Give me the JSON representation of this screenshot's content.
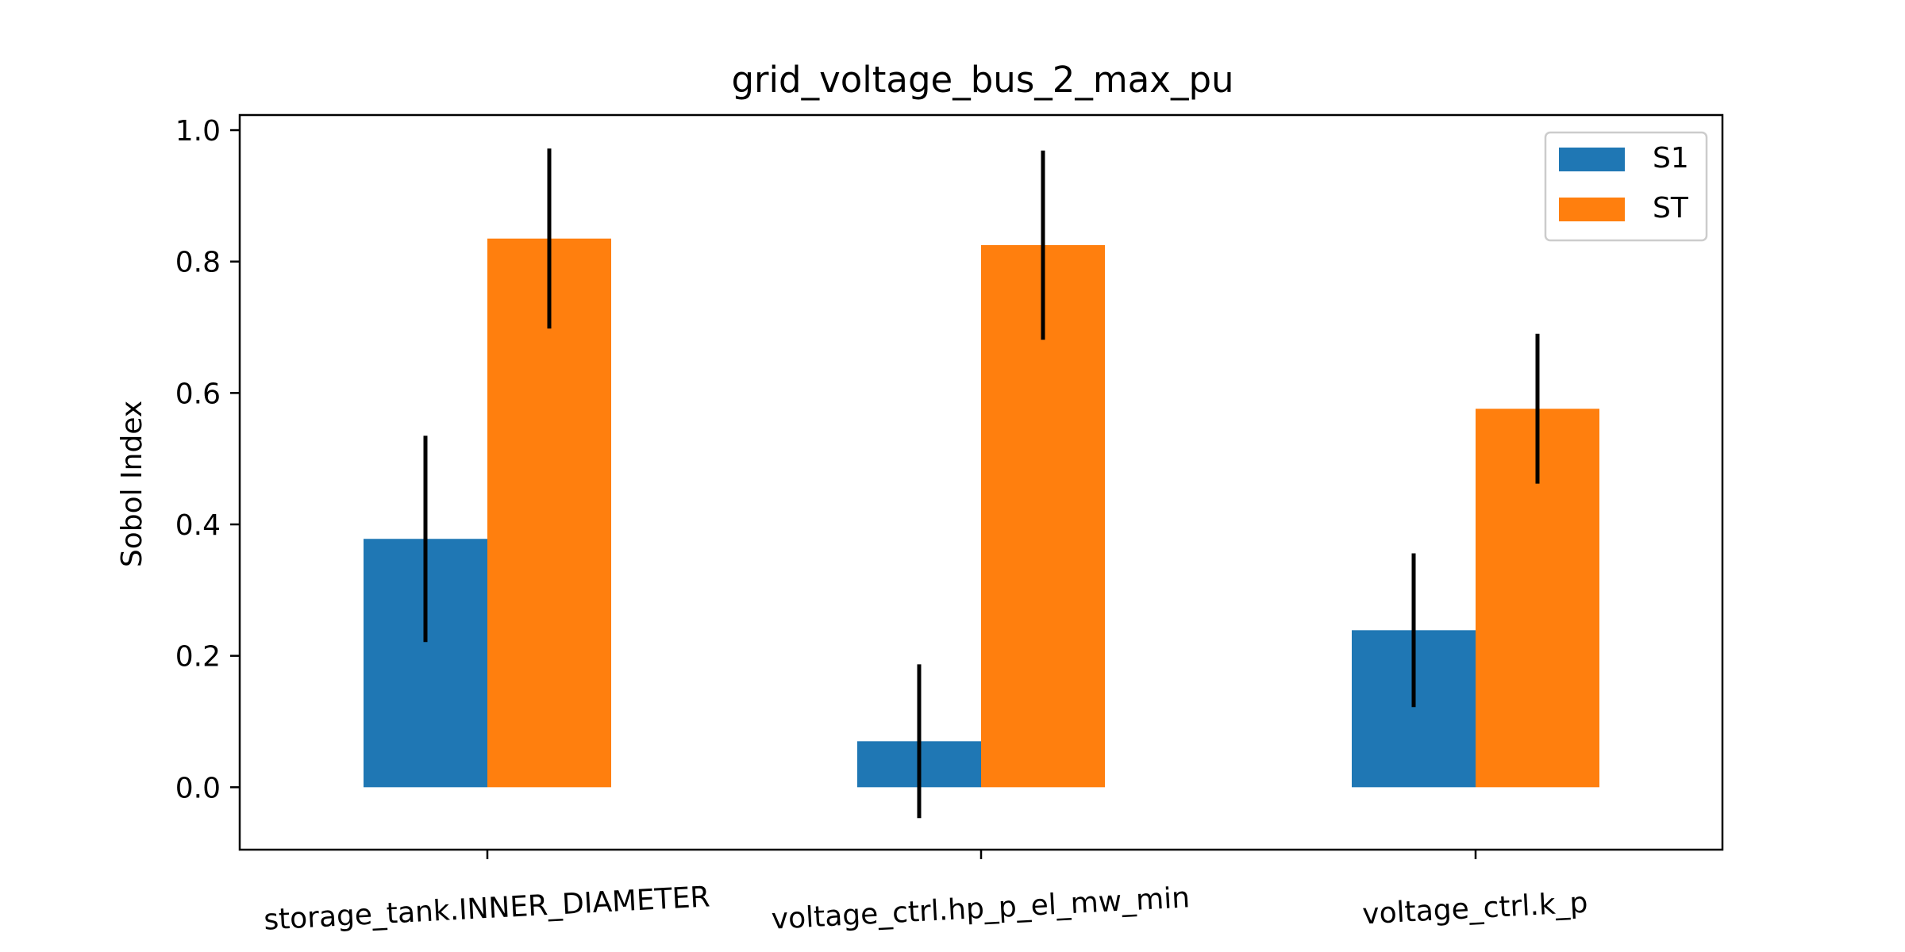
{
  "chart_data": {
    "type": "bar",
    "title": "grid_voltage_bus_2_max_pu",
    "xlabel": "",
    "ylabel": "Sobol Index",
    "categories": [
      "storage_tank.INNER_DIAMETER",
      "voltage_ctrl.hp_p_el_mw_min",
      "voltage_ctrl.k_p"
    ],
    "series": [
      {
        "name": "S1",
        "color": "#1f77b4",
        "values": [
          0.378,
          0.07,
          0.239
        ],
        "errors": [
          0.157,
          0.117,
          0.117
        ]
      },
      {
        "name": "ST",
        "color": "#ff7f0e",
        "values": [
          0.835,
          0.825,
          0.576
        ],
        "errors": [
          0.137,
          0.144,
          0.114
        ]
      }
    ],
    "ylim": [
      -0.095,
      1.023
    ],
    "yticks": [
      "0.0",
      "0.2",
      "0.4",
      "0.6",
      "0.8",
      "1.0"
    ],
    "error_bar_color": "#000000",
    "legend_position": "top-right",
    "grid": false
  }
}
